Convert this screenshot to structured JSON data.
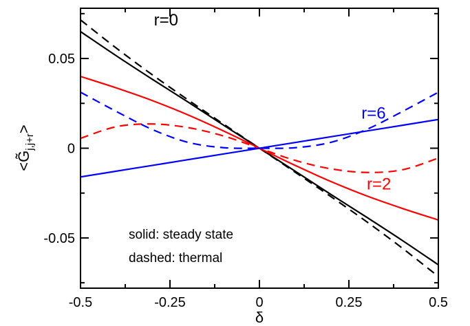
{
  "chart_data": {
    "type": "line",
    "title": "",
    "xlabel": "δ",
    "ylabel": "<G̃",
    "ylabel_sub": "j,j+r",
    "ylabel_close": ">",
    "xlim": [
      -0.5,
      0.5
    ],
    "ylim": [
      -0.078,
      0.078
    ],
    "x_ticks": [
      -0.5,
      -0.25,
      0,
      0.25,
      0.5
    ],
    "x_tick_labels": [
      "-0.5",
      "-0.25",
      "0",
      "0.25",
      "0.5"
    ],
    "y_ticks": [
      -0.05,
      0,
      0.05
    ],
    "y_tick_labels": [
      "-0.05",
      "0",
      "0.05"
    ],
    "grid": false,
    "notes": [
      "solid: steady state",
      "dashed: thermal"
    ],
    "x": [
      -0.5,
      -0.4,
      -0.3,
      -0.2,
      -0.1,
      0,
      0.1,
      0.2,
      0.3,
      0.4,
      0.5
    ],
    "series": [
      {
        "name": "r=0",
        "style": "solid",
        "color": "#000000",
        "values": [
          0.065,
          0.0515,
          0.0385,
          0.0258,
          0.0128,
          0,
          -0.0128,
          -0.0258,
          -0.0385,
          -0.0515,
          -0.065
        ]
      },
      {
        "name": "",
        "style": "dashed",
        "color": "#000000",
        "values": [
          0.0715,
          0.0558,
          0.041,
          0.027,
          0.0134,
          0,
          -0.0134,
          -0.027,
          -0.041,
          -0.0558,
          -0.0715
        ]
      },
      {
        "name": "r=2",
        "style": "solid",
        "color": "#ff0000",
        "values": [
          0.04,
          0.0336,
          0.0266,
          0.0186,
          0.0096,
          0,
          -0.0096,
          -0.0186,
          -0.0266,
          -0.0336,
          -0.04
        ]
      },
      {
        "name": "",
        "style": "dashed",
        "color": "#ff0000",
        "values": [
          0.0055,
          0.012,
          0.0135,
          0.0115,
          0.0068,
          0,
          -0.0068,
          -0.0115,
          -0.0135,
          -0.012,
          -0.0055
        ]
      },
      {
        "name": "r=6",
        "style": "solid",
        "color": "#0000ff",
        "values": [
          -0.016,
          -0.0128,
          -0.0096,
          -0.0064,
          -0.0032,
          0,
          0.0032,
          0.0064,
          0.0096,
          0.0128,
          0.016
        ]
      },
      {
        "name": "",
        "style": "dashed",
        "color": "#0000ff",
        "values": [
          0.0312,
          0.0205,
          0.0105,
          0.0033,
          0.0003,
          0,
          0.0003,
          0.0033,
          0.0105,
          0.0205,
          0.0312
        ]
      }
    ],
    "series_labels": [
      {
        "text": "r=0",
        "color": "#000000",
        "x": -0.295,
        "y": 0.0685
      },
      {
        "text": "r=2",
        "color": "#ff0000",
        "x": 0.3,
        "y": -0.023
      },
      {
        "text": "r=6",
        "color": "#0000ff",
        "x": 0.285,
        "y": 0.0165
      }
    ]
  }
}
